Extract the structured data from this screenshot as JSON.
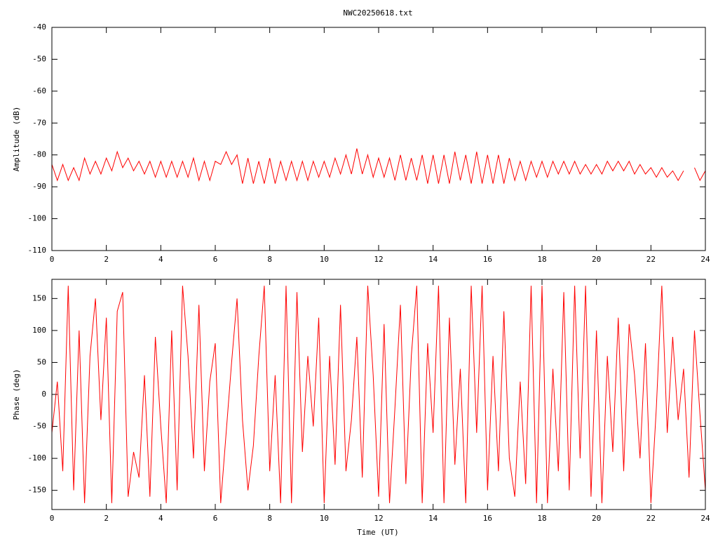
{
  "chart_data": [
    {
      "type": "line",
      "title": "NWC20250618.txt",
      "ylabel": "Amplitude (dB)",
      "color": "#ff0000",
      "x": [
        0,
        0.2,
        0.4,
        0.6,
        0.8,
        1,
        1.2,
        1.4,
        1.6,
        1.8,
        2,
        2.2,
        2.4,
        2.6,
        2.8,
        3,
        3.2,
        3.4,
        3.6,
        3.8,
        4,
        4.2,
        4.4,
        4.6,
        4.8,
        5,
        5.2,
        5.4,
        5.6,
        5.8,
        6,
        6.2,
        6.4,
        6.6,
        6.8,
        7,
        7.2,
        7.4,
        7.6,
        7.8,
        8,
        8.2,
        8.4,
        8.6,
        8.8,
        9,
        9.2,
        9.4,
        9.6,
        9.8,
        10,
        10.2,
        10.4,
        10.6,
        10.8,
        11,
        11.2,
        11.4,
        11.6,
        11.8,
        12,
        12.2,
        12.4,
        12.6,
        12.8,
        13,
        13.2,
        13.4,
        13.6,
        13.8,
        14,
        14.2,
        14.4,
        14.6,
        14.8,
        15,
        15.2,
        15.4,
        15.6,
        15.8,
        16,
        16.2,
        16.4,
        16.6,
        16.8,
        17,
        17.2,
        17.4,
        17.6,
        17.8,
        18,
        18.2,
        18.4,
        18.6,
        18.8,
        19,
        19.2,
        19.4,
        19.6,
        19.8,
        20,
        20.2,
        20.4,
        20.6,
        20.8,
        21,
        21.2,
        21.4,
        21.6,
        21.8,
        22,
        22.2,
        22.4,
        22.6,
        22.8,
        23,
        23.2,
        23.4,
        23.6,
        23.8,
        24
      ],
      "values": [
        -83,
        -88,
        -83,
        -88,
        -84,
        -88,
        -81,
        -86,
        -82,
        -86,
        -81,
        -85,
        -79,
        -84,
        -81,
        -85,
        -82,
        -86,
        -82,
        -87,
        -82,
        -87,
        -82,
        -87,
        -82,
        -87,
        -81,
        -88,
        -82,
        -88,
        -82,
        -83,
        -79,
        -83,
        -80,
        -89,
        -81,
        -89,
        -82,
        -89,
        -81,
        -89,
        -82,
        -88,
        -82,
        -88,
        -82,
        -88,
        -82,
        -87,
        -82,
        -87,
        -81,
        -86,
        -80,
        -86,
        -78,
        -86,
        -80,
        -87,
        -81,
        -87,
        -81,
        -88,
        -80,
        -88,
        -81,
        -88,
        -80,
        -89,
        -80,
        -89,
        -80,
        -89,
        -79,
        -88,
        -80,
        -89,
        -79,
        -89,
        -80,
        -89,
        -80,
        -89,
        -81,
        -88,
        -82,
        -88,
        -82,
        -87,
        -82,
        -87,
        -82,
        -86,
        -82,
        -86,
        -82,
        -86,
        -83,
        -86,
        -83,
        -86,
        -82,
        -85,
        -82,
        -85,
        -82,
        -86,
        -83,
        -86,
        -84,
        -87,
        -84,
        -87,
        -85,
        -88,
        -85,
        null,
        -84,
        -88,
        -85
      ],
      "xlim": [
        0,
        24
      ],
      "xticks": [
        0,
        2,
        4,
        6,
        8,
        10,
        12,
        14,
        16,
        18,
        20,
        22,
        24
      ],
      "ylim": [
        -110,
        -40
      ],
      "yticks": [
        -110,
        -100,
        -90,
        -80,
        -70,
        -60,
        -50,
        -40
      ]
    },
    {
      "type": "line",
      "ylabel": "Phase (deg)",
      "xlabel": "Time (UT)",
      "color": "#ff0000",
      "x": [
        0,
        0.2,
        0.4,
        0.6,
        0.8,
        1,
        1.2,
        1.4,
        1.6,
        1.8,
        2,
        2.2,
        2.4,
        2.6,
        2.8,
        3,
        3.2,
        3.4,
        3.6,
        3.8,
        4,
        4.2,
        4.4,
        4.6,
        4.8,
        5,
        5.2,
        5.4,
        5.6,
        5.8,
        6,
        6.2,
        6.4,
        6.6,
        6.8,
        7,
        7.2,
        7.4,
        7.6,
        7.8,
        8,
        8.2,
        8.4,
        8.6,
        8.8,
        9,
        9.2,
        9.4,
        9.6,
        9.8,
        10,
        10.2,
        10.4,
        10.6,
        10.8,
        11,
        11.2,
        11.4,
        11.6,
        11.8,
        12,
        12.2,
        12.4,
        12.6,
        12.8,
        13,
        13.2,
        13.4,
        13.6,
        13.8,
        14,
        14.2,
        14.4,
        14.6,
        14.8,
        15,
        15.2,
        15.4,
        15.6,
        15.8,
        16,
        16.2,
        16.4,
        16.6,
        16.8,
        17,
        17.2,
        17.4,
        17.6,
        17.8,
        18,
        18.2,
        18.4,
        18.6,
        18.8,
        19,
        19.2,
        19.4,
        19.6,
        19.8,
        20,
        20.2,
        20.4,
        20.6,
        20.8,
        21,
        21.2,
        21.4,
        21.6,
        21.8,
        22,
        22.2,
        22.4,
        22.6,
        22.8,
        23,
        23.2,
        23.4,
        23.6,
        23.8,
        24
      ],
      "values": [
        -60,
        20,
        -120,
        170,
        -150,
        100,
        -170,
        60,
        150,
        -40,
        120,
        -170,
        130,
        160,
        -160,
        -90,
        -130,
        30,
        -160,
        90,
        -50,
        -170,
        100,
        -150,
        170,
        60,
        -100,
        140,
        -120,
        20,
        80,
        -170,
        -60,
        50,
        150,
        -40,
        -150,
        -80,
        60,
        170,
        -120,
        30,
        -170,
        170,
        -170,
        160,
        -90,
        60,
        -50,
        120,
        -170,
        60,
        -110,
        140,
        -120,
        -40,
        90,
        -130,
        170,
        30,
        -160,
        110,
        -170,
        -20,
        140,
        -140,
        60,
        170,
        -170,
        80,
        -60,
        170,
        -170,
        120,
        -110,
        40,
        -170,
        170,
        -60,
        170,
        -150,
        60,
        -120,
        130,
        -100,
        -160,
        20,
        -140,
        170,
        -170,
        170,
        -170,
        40,
        -120,
        160,
        -150,
        170,
        -100,
        170,
        -160,
        100,
        -170,
        60,
        -90,
        120,
        -120,
        110,
        30,
        -100,
        80,
        -170,
        -20,
        170,
        -60,
        90,
        -40,
        40,
        -130,
        100,
        -30,
        -150
      ],
      "xlim": [
        0,
        24
      ],
      "xticks": [
        0,
        2,
        4,
        6,
        8,
        10,
        12,
        14,
        16,
        18,
        20,
        22,
        24
      ],
      "ylim": [
        -180,
        180
      ],
      "yticks": [
        -150,
        -100,
        -50,
        0,
        50,
        100,
        150
      ]
    }
  ]
}
